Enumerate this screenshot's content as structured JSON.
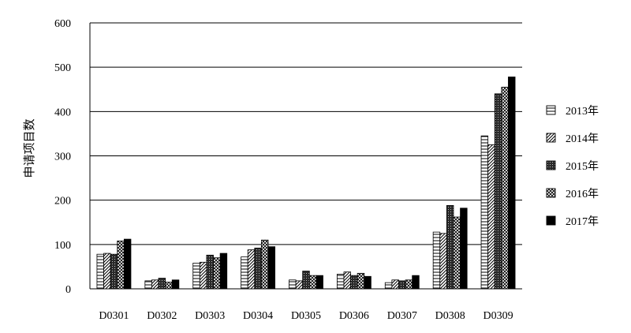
{
  "chart_data": {
    "type": "bar",
    "title": "",
    "xlabel": "",
    "ylabel": "申请项目数",
    "ylim": [
      0,
      600
    ],
    "yticks": [
      0,
      100,
      200,
      300,
      400,
      500,
      600
    ],
    "grid": true,
    "legend_position": "right",
    "categories": [
      "D0301",
      "D0302",
      "D0303",
      "D0304",
      "D0305",
      "D0306",
      "D0307",
      "D0308",
      "D0309"
    ],
    "series": [
      {
        "name": "2013年",
        "pattern": "horizontal-lines",
        "values": [
          78,
          18,
          58,
          72,
          20,
          33,
          14,
          128,
          345
        ]
      },
      {
        "name": "2014年",
        "pattern": "diagonal-lines",
        "values": [
          80,
          20,
          60,
          88,
          18,
          38,
          20,
          125,
          325
        ]
      },
      {
        "name": "2015年",
        "pattern": "dark-grid",
        "values": [
          78,
          24,
          76,
          92,
          40,
          30,
          18,
          188,
          440
        ]
      },
      {
        "name": "2016年",
        "pattern": "cross-hatch",
        "values": [
          108,
          15,
          70,
          110,
          30,
          35,
          20,
          162,
          455
        ]
      },
      {
        "name": "2017年",
        "pattern": "solid-black",
        "values": [
          112,
          20,
          80,
          95,
          30,
          28,
          30,
          182,
          478
        ]
      }
    ]
  }
}
